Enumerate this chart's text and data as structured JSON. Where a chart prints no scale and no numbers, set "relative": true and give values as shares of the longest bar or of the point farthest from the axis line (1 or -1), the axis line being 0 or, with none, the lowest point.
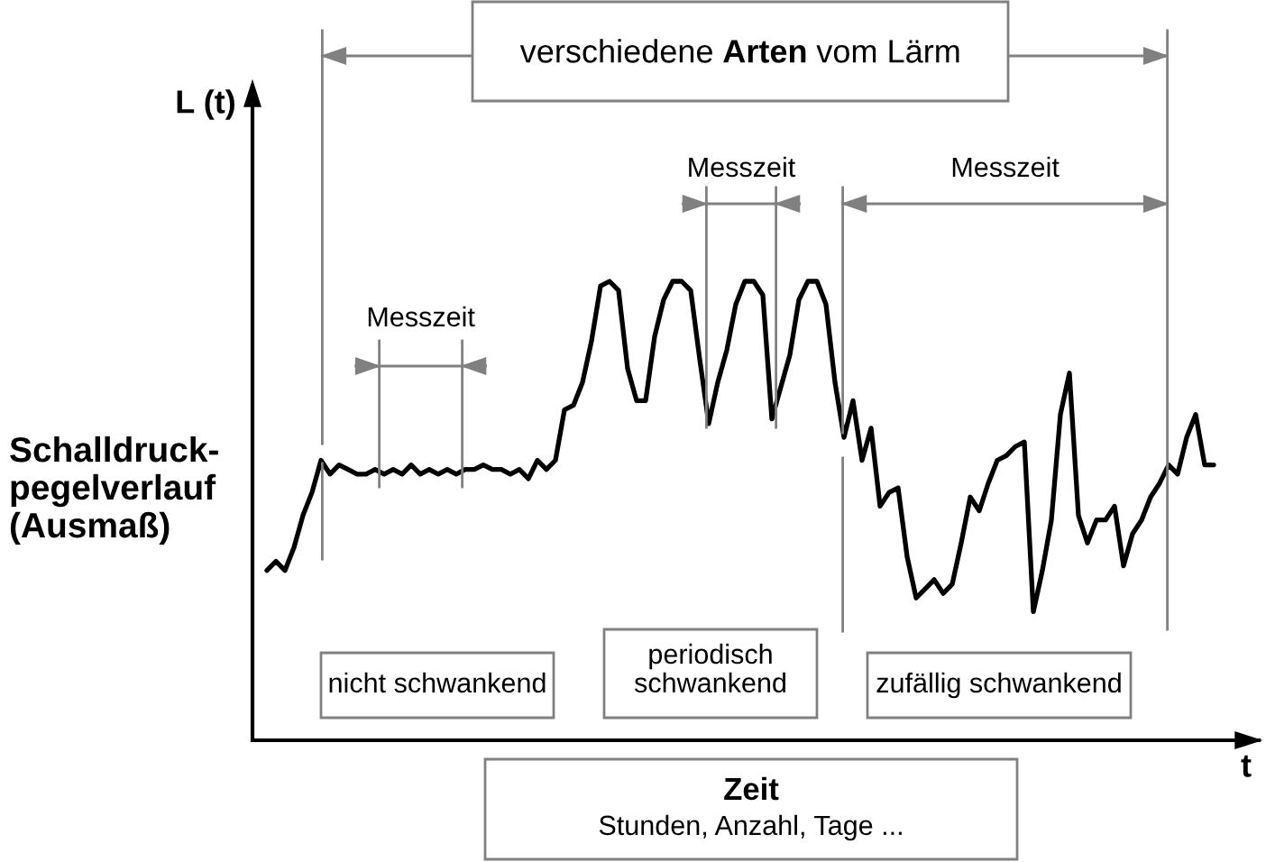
{
  "chart_data": {
    "type": "line",
    "xlabel": "t",
    "ylabel": "Schalldruck-\npegelverlauf\n(Ausmaß)",
    "relative": true,
    "categories": [
      null,
      null,
      null,
      null,
      null,
      null,
      null,
      null,
      null,
      null,
      null,
      null,
      null,
      null,
      null,
      null,
      null,
      null,
      null,
      null,
      null,
      null,
      null,
      null,
      null,
      null,
      null,
      null,
      null,
      null,
      null,
      null,
      null,
      null,
      null,
      null,
      null,
      null,
      null,
      null,
      null,
      null,
      null,
      null,
      null,
      null,
      null,
      null,
      null,
      null,
      null,
      null,
      null,
      null,
      null,
      null,
      null,
      null,
      null,
      null,
      null,
      null,
      null,
      null,
      null,
      null,
      null,
      null,
      null,
      null,
      null,
      null,
      null,
      null,
      null,
      null,
      null,
      null,
      null,
      null,
      null,
      null,
      null,
      null,
      null,
      null,
      null,
      null,
      null,
      null,
      null,
      null,
      null,
      null,
      null,
      null,
      null,
      null,
      null,
      null,
      null,
      null,
      null,
      null,
      null,
      null
    ],
    "series": [
      {
        "color": "#000000",
        "values": [
          0.37,
          0.39,
          0.37,
          0.42,
          0.49,
          0.54,
          0.61,
          0.58,
          0.6,
          0.59,
          0.58,
          0.58,
          0.59,
          0.58,
          0.59,
          0.58,
          0.6,
          0.58,
          0.59,
          0.58,
          0.59,
          0.58,
          0.59,
          0.59,
          0.6,
          0.59,
          0.59,
          0.58,
          0.59,
          0.57,
          0.61,
          0.59,
          0.61,
          0.72,
          0.73,
          0.78,
          0.87,
          0.99,
          1,
          0.98,
          0.81,
          0.74,
          0.74,
          0.88,
          0.96,
          1,
          1,
          0.98,
          0.83,
          0.69,
          0.78,
          0.85,
          0.95,
          1,
          1,
          0.97,
          0.7,
          0.77,
          0.84,
          0.96,
          1,
          1,
          0.95,
          0.78,
          0.66,
          0.74,
          0.61,
          0.68,
          0.51,
          0.54,
          0.55,
          0.4,
          0.31,
          0.33,
          0.35,
          0.32,
          0.34,
          0.43,
          0.53,
          0.5,
          0.56,
          0.61,
          0.62,
          0.64,
          0.65,
          0.28,
          0.37,
          0.48,
          0.71,
          0.8,
          0.49,
          0.43,
          0.48,
          0.48,
          0.51,
          0.38,
          0.45,
          0.48,
          0.53,
          0.56,
          0.6,
          0.58,
          0.66,
          0.71,
          0.6,
          0.6
        ]
      }
    ],
    "annotations": [
      "L (t)",
      "verschiedene",
      "Arten",
      "vom Lärm",
      "Messzeit",
      "Messzeit",
      "Messzeit",
      "nicht schwankend",
      "periodisch\nschwankend",
      "zufällig schwankend",
      "Zeit",
      "Stunden, Anzahl, Tage ..."
    ]
  }
}
